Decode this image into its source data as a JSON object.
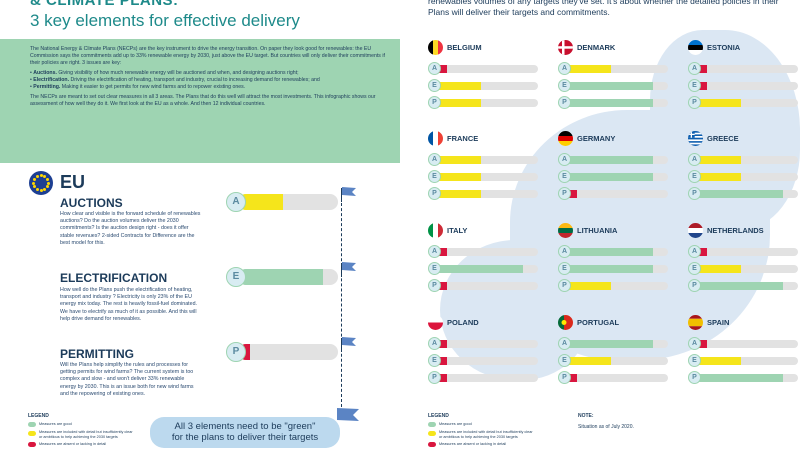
{
  "header": {
    "title": "& CLIMATE PLANS:",
    "subtitle": "3 key elements for effective delivery"
  },
  "intro": {
    "p1": "The National Energy & Climate Plans (NECPs) are the key instrument to drive the energy transition. On paper they look good for renewables: the EU Commission says the commitments add up to 33% renewable energy by 2030, just above the EU target. But countries will only deliver their commitments if their policies are right. 3 issues are key:",
    "bullets": [
      {
        "bold": "Auctions.",
        "text": " Giving visibility of how much renewable energy will be auctioned and when, and designing auctions right;"
      },
      {
        "bold": "Electrification.",
        "text": " Driving the electrification of heating, transport and industry, crucial to increasing demand for renewables; and"
      },
      {
        "bold": "Permitting.",
        "text": " Making it easier to get permits for new wind farms and to repower existing ones."
      }
    ],
    "p2": "The NECPs are meant to set out clear measures in all 3 areas. The Plans that do this well will attract the most investments. This infographic shows our assessment of how well they do it. We first look at the EU as a whole. And then 12 individual countries."
  },
  "eu": {
    "label": "EU",
    "sections": [
      {
        "title": "AUCTIONS",
        "letter": "A",
        "text": "How clear and visible is the forward schedule of renewables auctions? Do the auction volumes deliver the 2030 commitments? Is the auction design right - does it offer stable revenues? 2-sided Contracts for Difference are the best model for this.",
        "level": "yellow"
      },
      {
        "title": "ELECTRIFICATION",
        "letter": "E",
        "text": "How well do the Plans push the electrification of heating, transport and industry ? Electricity is only 23% of the EU energy mix today. The rest is heavily fossil-fuel dominated. We have to electrify as much of it as possible. And this will help drive demand for renewables.",
        "level": "green"
      },
      {
        "title": "PERMITTING",
        "letter": "P",
        "text": "Will the Plans help simplify the rules and processes for getting permits for wind farms? The current system is too complex and slow - and won't deliver 33% renewable energy by 2030. This is an issue both for new wind farms and the repowering of existing ones.",
        "level": "red"
      }
    ]
  },
  "legend": {
    "title": "LEGEND",
    "items": [
      {
        "color": "#9ed4b2",
        "text": "Measures are good"
      },
      {
        "color": "#f5e51b",
        "text": "Measures are included with detail but insufficiently clear or ambitious to help achieving the 2030 targets"
      },
      {
        "color": "#d9163f",
        "text": "Measures are absent or lacking in detail"
      }
    ]
  },
  "callout": {
    "line1": "All 3 elements need to be \"green\"",
    "line2": "for the plans to deliver their targets"
  },
  "right": {
    "top_text": "renewables volumes of any targets they've set. It's about whether the detailed policies in their Plans will deliver their targets and commitments."
  },
  "countries": [
    {
      "name": "BELGIUM",
      "flag": "belgium",
      "levels": [
        "red",
        "yellow",
        "yellow"
      ]
    },
    {
      "name": "DENMARK",
      "flag": "denmark",
      "levels": [
        "yellow",
        "green",
        "green"
      ]
    },
    {
      "name": "ESTONIA",
      "flag": "estonia",
      "levels": [
        "red",
        "red",
        "yellow"
      ]
    },
    {
      "name": "FRANCE",
      "flag": "france",
      "levels": [
        "yellow",
        "yellow",
        "yellow"
      ]
    },
    {
      "name": "GERMANY",
      "flag": "germany",
      "levels": [
        "green",
        "green",
        "red"
      ]
    },
    {
      "name": "GREECE",
      "flag": "greece",
      "levels": [
        "yellow",
        "yellow",
        "green"
      ]
    },
    {
      "name": "ITALY",
      "flag": "italy",
      "levels": [
        "red",
        "green",
        "red"
      ]
    },
    {
      "name": "LITHUANIA",
      "flag": "lithuania",
      "levels": [
        "green",
        "green",
        "yellow"
      ]
    },
    {
      "name": "NETHERLANDS",
      "flag": "netherlands",
      "levels": [
        "red",
        "yellow",
        "green"
      ]
    },
    {
      "name": "POLAND",
      "flag": "poland",
      "levels": [
        "red",
        "red",
        "red"
      ]
    },
    {
      "name": "PORTUGAL",
      "flag": "portugal",
      "levels": [
        "green",
        "yellow",
        "red"
      ]
    },
    {
      "name": "SPAIN",
      "flag": "spain",
      "levels": [
        "red",
        "yellow",
        "green"
      ]
    }
  ],
  "row_letters": [
    "A",
    "E",
    "P"
  ],
  "note": {
    "title": "NOTE:",
    "text": "Situation as of July 2020."
  },
  "colors": {
    "green": "#9ed4b2",
    "yellow": "#f5e51b",
    "red": "#d9163f",
    "navy": "#1c3b5a",
    "teal": "#1e8a8a",
    "track": "#e2e2e2"
  }
}
